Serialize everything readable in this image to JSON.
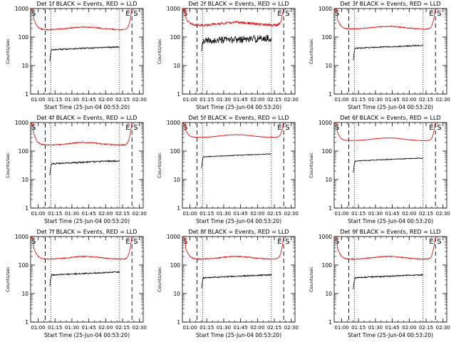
{
  "figure": {
    "colors": {
      "events": "#000000",
      "lld": "#e00000",
      "axis": "#000000",
      "background": "#ffffff"
    },
    "ylabel": "Counts/sec",
    "xlabel": "Start Time (25-Jun-04 00:53:20)",
    "y_ticks": [
      "1",
      "10",
      "100",
      "1000"
    ],
    "x_ticks": [
      "01:00",
      "01:15",
      "01:30",
      "01:45",
      "02:00",
      "02:15",
      "02:30"
    ],
    "marker_labels": {
      "start": "S",
      "end": "E"
    }
  },
  "chart_data": [
    {
      "type": "line",
      "title": "Det 1f BLACK = Events, RED = LLD",
      "detector": "1f",
      "xlabel": "Start Time (25-Jun-04 00:53:20)",
      "ylabel": "Counts/sec",
      "xlim_minutes_after_start": [
        0,
        100
      ],
      "ylim": [
        1,
        1000
      ],
      "yscale": "log",
      "vlines_dashed_minutes": [
        13,
        90
      ],
      "vlines_dotted_minutes": [
        18,
        79
      ],
      "marker_S_minutes": 13,
      "marker_E_minutes": 90,
      "series": [
        {
          "name": "LLD",
          "color": "#e00000",
          "x_range": [
            0,
            90
          ],
          "plateau": 180,
          "noise": 0.04
        },
        {
          "name": "Events",
          "color": "#000000",
          "x_range": [
            17,
            79
          ],
          "plateau": 40,
          "noise": 0.05
        }
      ]
    },
    {
      "type": "line",
      "title": "Det 2f BLACK = Events, RED = LLD",
      "detector": "2f",
      "xlabel": "Start Time (25-Jun-04 00:53:20)",
      "ylabel": "Counts/sec",
      "xlim_minutes_after_start": [
        0,
        100
      ],
      "ylim": [
        1,
        1000
      ],
      "yscale": "log",
      "vlines_dashed_minutes": [
        13,
        90
      ],
      "vlines_dotted_minutes": [
        18,
        79
      ],
      "marker_S_minutes": 13,
      "marker_E_minutes": 90,
      "series": [
        {
          "name": "LLD",
          "color": "#e00000",
          "x_range": [
            0,
            90
          ],
          "plateau": 260,
          "noise": 0.1
        },
        {
          "name": "Events",
          "color": "#000000",
          "x_range": [
            17,
            79
          ],
          "plateau": 80,
          "noise": 0.28
        }
      ]
    },
    {
      "type": "line",
      "title": "Det 3f BLACK = Events, RED = LLD",
      "detector": "3f",
      "xlabel": "Start Time (25-Jun-04 00:53:20)",
      "ylabel": "Counts/sec",
      "xlim_minutes_after_start": [
        0,
        100
      ],
      "ylim": [
        1,
        1000
      ],
      "yscale": "log",
      "vlines_dashed_minutes": [
        13,
        90
      ],
      "vlines_dotted_minutes": [
        18,
        79
      ],
      "marker_S_minutes": 13,
      "marker_E_minutes": 90,
      "series": [
        {
          "name": "LLD",
          "color": "#e00000",
          "x_range": [
            0,
            90
          ],
          "plateau": 190,
          "noise": 0.04
        },
        {
          "name": "Events",
          "color": "#000000",
          "x_range": [
            17,
            79
          ],
          "plateau": 45,
          "noise": 0.05
        }
      ]
    },
    {
      "type": "line",
      "title": "Det 4f BLACK = Events, RED = LLD",
      "detector": "4f",
      "xlabel": "Start Time (25-Jun-04 00:53:20)",
      "ylabel": "Counts/sec",
      "xlim_minutes_after_start": [
        0,
        100
      ],
      "ylim": [
        1,
        1000
      ],
      "yscale": "log",
      "vlines_dashed_minutes": [
        13,
        90
      ],
      "vlines_dotted_minutes": [
        18,
        79
      ],
      "marker_S_minutes": 13,
      "marker_E_minutes": 90,
      "series": [
        {
          "name": "LLD",
          "color": "#e00000",
          "x_range": [
            0,
            90
          ],
          "plateau": 160,
          "noise": 0.05
        },
        {
          "name": "Events",
          "color": "#000000",
          "x_range": [
            17,
            79
          ],
          "plateau": 40,
          "noise": 0.06
        }
      ]
    },
    {
      "type": "line",
      "title": "Det 5f BLACK = Events, RED = LLD",
      "detector": "5f",
      "xlabel": "Start Time (25-Jun-04 00:53:20)",
      "ylabel": "Counts/sec",
      "xlim_minutes_after_start": [
        0,
        100
      ],
      "ylim": [
        1,
        1000
      ],
      "yscale": "log",
      "vlines_dashed_minutes": [
        13,
        90
      ],
      "vlines_dotted_minutes": [
        18,
        79
      ],
      "marker_S_minutes": 13,
      "marker_E_minutes": 90,
      "series": [
        {
          "name": "LLD",
          "color": "#e00000",
          "x_range": [
            0,
            90
          ],
          "plateau": 300,
          "noise": 0.02
        },
        {
          "name": "Events",
          "color": "#000000",
          "x_range": [
            17,
            79
          ],
          "plateau": 70,
          "noise": 0.03
        }
      ]
    },
    {
      "type": "line",
      "title": "Det 6f BLACK = Events, RED = LLD",
      "detector": "6f",
      "xlabel": "Start Time (25-Jun-04 00:53:20)",
      "ylabel": "Counts/sec",
      "xlim_minutes_after_start": [
        0,
        100
      ],
      "ylim": [
        1,
        1000
      ],
      "yscale": "log",
      "vlines_dashed_minutes": [
        13,
        90
      ],
      "vlines_dotted_minutes": [
        18,
        79
      ],
      "marker_S_minutes": 13,
      "marker_E_minutes": 90,
      "series": [
        {
          "name": "LLD",
          "color": "#e00000",
          "x_range": [
            0,
            90
          ],
          "plateau": 230,
          "noise": 0.02
        },
        {
          "name": "Events",
          "color": "#000000",
          "x_range": [
            17,
            79
          ],
          "plateau": 50,
          "noise": 0.03
        }
      ]
    },
    {
      "type": "line",
      "title": "Det 7f BLACK = Events, RED = LLD",
      "detector": "7f",
      "xlabel": "Start Time (25-Jun-04 00:53:20)",
      "ylabel": "Counts/sec",
      "xlim_minutes_after_start": [
        0,
        100
      ],
      "ylim": [
        1,
        1000
      ],
      "yscale": "log",
      "vlines_dashed_minutes": [
        13,
        90
      ],
      "vlines_dotted_minutes": [
        18,
        79
      ],
      "marker_S_minutes": 13,
      "marker_E_minutes": 90,
      "series": [
        {
          "name": "LLD",
          "color": "#e00000",
          "x_range": [
            0,
            90
          ],
          "plateau": 160,
          "noise": 0.04
        },
        {
          "name": "Events",
          "color": "#000000",
          "x_range": [
            17,
            79
          ],
          "plateau": 50,
          "noise": 0.05
        }
      ]
    },
    {
      "type": "line",
      "title": "Det 8f BLACK = Events, RED = LLD",
      "detector": "8f",
      "xlabel": "Start Time (25-Jun-04 00:53:20)",
      "ylabel": "Counts/sec",
      "xlim_minutes_after_start": [
        0,
        100
      ],
      "ylim": [
        1,
        1000
      ],
      "yscale": "log",
      "vlines_dashed_minutes": [
        13,
        90
      ],
      "vlines_dotted_minutes": [
        18,
        79
      ],
      "marker_S_minutes": 13,
      "marker_E_minutes": 90,
      "series": [
        {
          "name": "LLD",
          "color": "#e00000",
          "x_range": [
            0,
            90
          ],
          "plateau": 160,
          "noise": 0.04
        },
        {
          "name": "Events",
          "color": "#000000",
          "x_range": [
            17,
            79
          ],
          "plateau": 40,
          "noise": 0.05
        }
      ]
    },
    {
      "type": "line",
      "title": "Det 9f BLACK = Events, RED = LLD",
      "detector": "9f",
      "xlabel": "Start Time (25-Jun-04 00:53:20)",
      "ylabel": "Counts/sec",
      "xlim_minutes_after_start": [
        0,
        100
      ],
      "ylim": [
        1,
        1000
      ],
      "yscale": "log",
      "vlines_dashed_minutes": [
        13,
        90
      ],
      "vlines_dotted_minutes": [
        18,
        79
      ],
      "marker_S_minutes": 13,
      "marker_E_minutes": 90,
      "series": [
        {
          "name": "LLD",
          "color": "#e00000",
          "x_range": [
            0,
            90
          ],
          "plateau": 160,
          "noise": 0.04
        },
        {
          "name": "Events",
          "color": "#000000",
          "x_range": [
            17,
            79
          ],
          "plateau": 40,
          "noise": 0.05
        }
      ]
    }
  ]
}
